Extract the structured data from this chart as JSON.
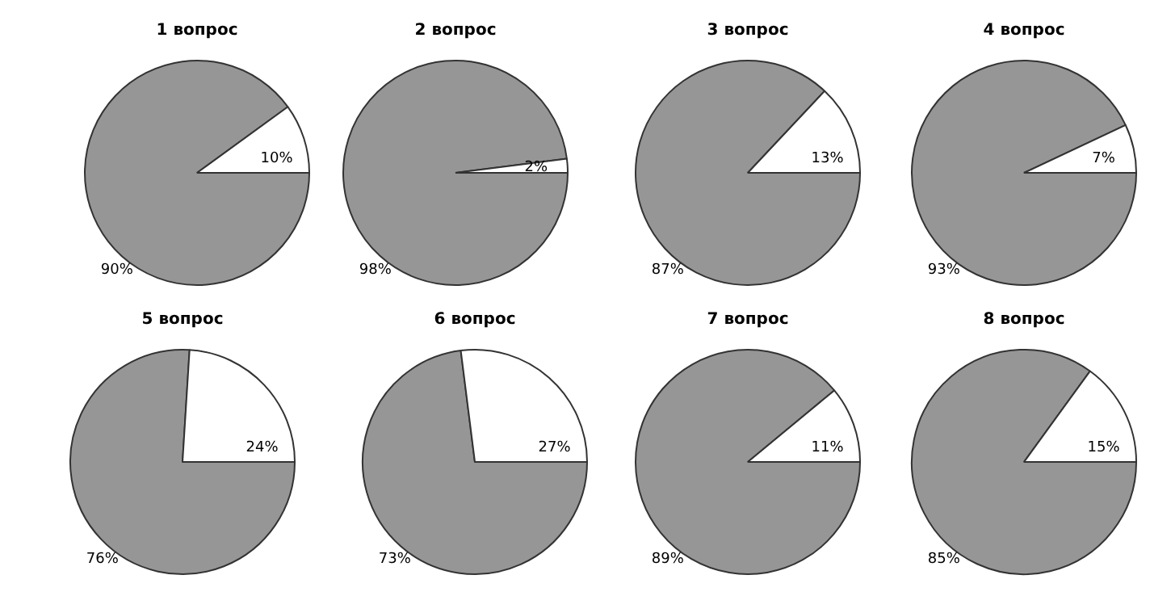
{
  "chart_data": [
    {
      "type": "pie",
      "title": "1 вопрос",
      "categories": [
        null,
        null
      ],
      "values": [
        90,
        10
      ],
      "colors": [
        "#969696",
        "#ffffff"
      ],
      "value_labels": [
        "90%",
        "10%"
      ]
    },
    {
      "type": "pie",
      "title": "2 вопрос",
      "categories": [
        null,
        null
      ],
      "values": [
        98,
        2
      ],
      "colors": [
        "#969696",
        "#ffffff"
      ],
      "value_labels": [
        "98%",
        "2%"
      ]
    },
    {
      "type": "pie",
      "title": "3 вопрос",
      "categories": [
        null,
        null
      ],
      "values": [
        87,
        13
      ],
      "colors": [
        "#969696",
        "#ffffff"
      ],
      "value_labels": [
        "87%",
        "13%"
      ]
    },
    {
      "type": "pie",
      "title": "4 вопрос",
      "categories": [
        null,
        null
      ],
      "values": [
        93,
        7
      ],
      "colors": [
        "#969696",
        "#ffffff"
      ],
      "value_labels": [
        "93%",
        "7%"
      ]
    },
    {
      "type": "pie",
      "title": "5 вопрос",
      "categories": [
        null,
        null
      ],
      "values": [
        76,
        24
      ],
      "colors": [
        "#969696",
        "#ffffff"
      ],
      "value_labels": [
        "76%",
        "24%"
      ]
    },
    {
      "type": "pie",
      "title": "6 вопрос",
      "categories": [
        null,
        null
      ],
      "values": [
        73,
        27
      ],
      "colors": [
        "#969696",
        "#ffffff"
      ],
      "value_labels": [
        "73%",
        "27%"
      ]
    },
    {
      "type": "pie",
      "title": "7 вопрос",
      "categories": [
        null,
        null
      ],
      "values": [
        89,
        11
      ],
      "colors": [
        "#969696",
        "#ffffff"
      ],
      "value_labels": [
        "89%",
        "11%"
      ]
    },
    {
      "type": "pie",
      "title": "8 вопрос",
      "categories": [
        null,
        null
      ],
      "values": [
        85,
        15
      ],
      "colors": [
        "#969696",
        "#ffffff"
      ],
      "value_labels": [
        "85%",
        "15%"
      ]
    }
  ]
}
